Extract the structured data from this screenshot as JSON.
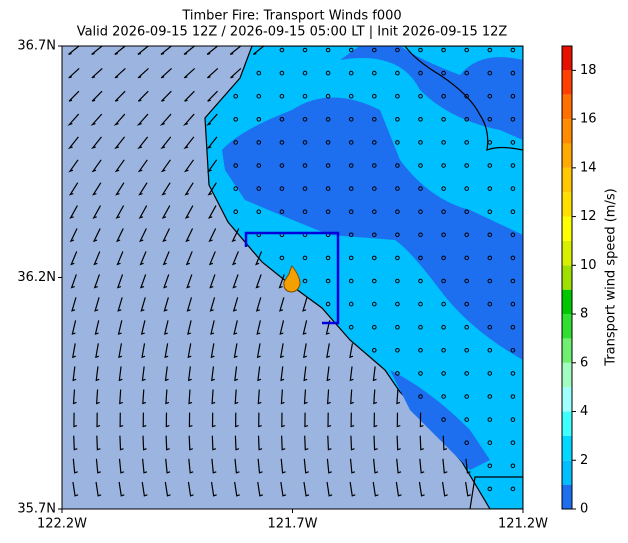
{
  "chart_data": {
    "type": "map",
    "title": "Timber Fire: Transport Winds f000",
    "subtitle": "Valid 2026-09-15 12Z / 2026-09-15 05:00 LT | Init 2026-09-15 12Z",
    "xlim": [
      -122.2,
      -121.2
    ],
    "ylim": [
      35.7,
      36.7
    ],
    "xticks": [
      {
        "value": -122.2,
        "label": "122.2W"
      },
      {
        "value": -121.7,
        "label": "121.7W"
      },
      {
        "value": -121.2,
        "label": "121.2W"
      }
    ],
    "yticks": [
      {
        "value": 35.7,
        "label": "35.7N"
      },
      {
        "value": 36.2,
        "label": "36.2N"
      },
      {
        "value": 36.7,
        "label": "36.7N"
      }
    ],
    "colorbar": {
      "label": "Transport wind speed (m/s)",
      "ylim": [
        0,
        19
      ],
      "yticks": [
        0,
        2,
        4,
        6,
        8,
        10,
        12,
        14,
        16,
        18
      ],
      "levels": [
        0,
        1,
        2,
        3,
        4,
        5,
        6,
        7,
        8,
        9,
        10,
        11,
        12,
        13,
        14,
        15,
        16,
        17,
        18,
        19
      ],
      "colors": [
        "#1e6ef0",
        "#00bfff",
        "#00d8ff",
        "#40ffff",
        "#a0ffff",
        "#a0ffc0",
        "#70f070",
        "#30e030",
        "#00c800",
        "#a0e000",
        "#d8f000",
        "#ffff00",
        "#ffe000",
        "#ffc800",
        "#ffaa00",
        "#ff8c00",
        "#ff7000",
        "#ff4000",
        "#e81000"
      ]
    }
  }
}
